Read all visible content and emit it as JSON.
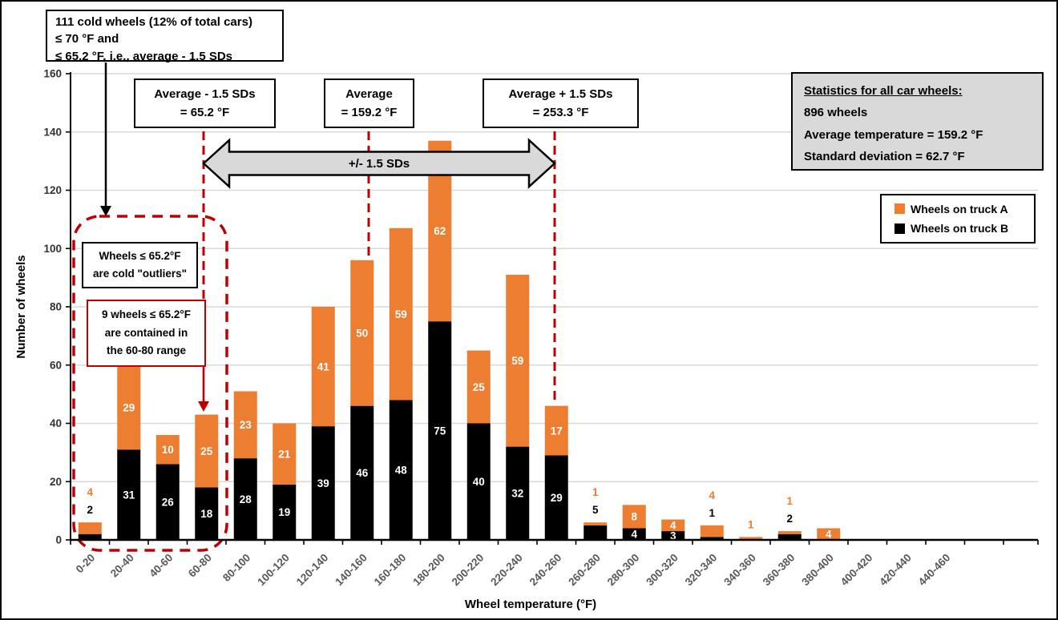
{
  "annotations": {
    "top_left_box": {
      "line1": "111 cold wheels (12% of total cars)",
      "line2": "≤ 70 °F and",
      "line3": "≤ 65.2 °F, i.e., average - 1.5 SDs"
    },
    "avg_minus_box": {
      "line1": "Average - 1.5 SDs",
      "line2": "= 65.2 °F"
    },
    "avg_box": {
      "line1": "Average",
      "line2": "= 159.2 °F"
    },
    "avg_plus_box": {
      "line1": "Average + 1.5 SDs",
      "line2": "= 253.3 °F"
    },
    "sd_arrow_label": "+/- 1.5 SDs",
    "outlier_box": {
      "line1": "Wheels ≤ 65.2°F",
      "line2": "are cold \"outliers\""
    },
    "nine_wheels_box": {
      "line1": "9 wheels ≤ 65.2°F",
      "line2": "are contained in",
      "line3": "the 60-80 range"
    }
  },
  "stats_box": {
    "title": "Statistics for all car wheels:",
    "line1": "896 wheels",
    "line2": "Average temperature = 159.2 °F",
    "line3": "Standard deviation = 62.7 °F"
  },
  "chart_data": {
    "type": "bar",
    "stacked": true,
    "xlabel": "Wheel temperature (°F)",
    "ylabel": "Number of wheels",
    "ylim": [
      0,
      160
    ],
    "y_ticks": [
      0,
      20,
      40,
      60,
      80,
      100,
      120,
      140,
      160
    ],
    "grid": "horizontal",
    "legend_position": "right",
    "categories": [
      "0-20",
      "20-40",
      "40-60",
      "60-80",
      "80-100",
      "100-120",
      "120-140",
      "140-160",
      "160-180",
      "180-200",
      "200-220",
      "220-240",
      "240-260",
      "260-280",
      "280-300",
      "300-320",
      "320-340",
      "340-360",
      "360-380",
      "380-400",
      "400-420",
      "420-440",
      "440-460"
    ],
    "series": [
      {
        "name": "Wheels on truck A",
        "color": "#ED7D31",
        "values": [
          4,
          29,
          10,
          25,
          23,
          21,
          41,
          50,
          59,
          62,
          25,
          59,
          17,
          1,
          8,
          4,
          4,
          1,
          1,
          4,
          0,
          0,
          0
        ]
      },
      {
        "name": "Wheels on truck B",
        "color": "#000000",
        "values": [
          2,
          31,
          26,
          18,
          28,
          19,
          39,
          46,
          48,
          75,
          40,
          32,
          29,
          5,
          4,
          3,
          1,
          0,
          2,
          0,
          0,
          0,
          0
        ]
      }
    ],
    "labels_outside": [
      true,
      false,
      false,
      false,
      false,
      false,
      false,
      false,
      false,
      false,
      false,
      false,
      false,
      true,
      false,
      false,
      true,
      true,
      true,
      false,
      false,
      false,
      false
    ],
    "reference_lines": [
      {
        "value_f": 65.2,
        "label": "Average - 1.5 SDs"
      },
      {
        "value_f": 159.2,
        "label": "Average"
      },
      {
        "value_f": 253.3,
        "label": "Average + 1.5 SDs"
      }
    ]
  },
  "colors": {
    "orange": "#ED7D31",
    "black": "#000000",
    "red": "#C00000",
    "grey_fill": "#D9D9D9",
    "gridline": "#D9D9D9",
    "x_tick_text": "#595959",
    "y_tick_text": "#333333"
  }
}
